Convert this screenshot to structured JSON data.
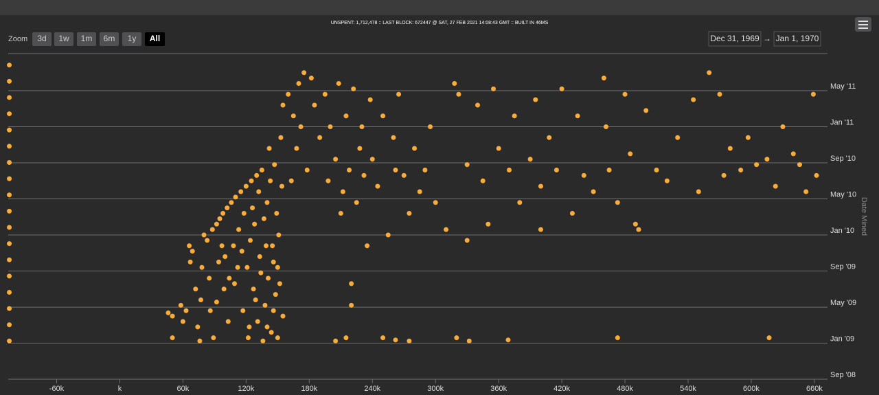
{
  "chart_data": {
    "type": "scatter",
    "title": "UNSPENT: 1,712,478 :: LAST BLOCK: 672447 @ SAT, 27 FEB 2021 14:08:43 GMT :: BUILT IN 46MS",
    "zoom_label": "Zoom",
    "zoom_buttons": [
      "3d",
      "1w",
      "1m",
      "6m",
      "1y",
      "All"
    ],
    "zoom_selected": "All",
    "range_from": "Dec 31, 1969",
    "range_arrow": "→",
    "range_to": "Jan 1, 1970",
    "y_axis_title": "Date Mined",
    "color": "#f7ac3c",
    "grid": true,
    "xlim": [
      -106000,
      672447
    ],
    "ylim": [
      2008.667,
      2011.676
    ],
    "xticks": [
      {
        "value": -60000,
        "label": "-60k"
      },
      {
        "value": 0,
        "label": "k"
      },
      {
        "value": 60000,
        "label": "60k"
      },
      {
        "value": 120000,
        "label": "120k"
      },
      {
        "value": 180000,
        "label": "180k"
      },
      {
        "value": 240000,
        "label": "240k"
      },
      {
        "value": 300000,
        "label": "300k"
      },
      {
        "value": 360000,
        "label": "360k"
      },
      {
        "value": 420000,
        "label": "420k"
      },
      {
        "value": 480000,
        "label": "480k"
      },
      {
        "value": 540000,
        "label": "540k"
      },
      {
        "value": 600000,
        "label": "600k"
      },
      {
        "value": 660000,
        "label": "660k"
      }
    ],
    "yticks": [
      {
        "value": 2008.667,
        "label": "Sep '08"
      },
      {
        "value": 2009,
        "label": "Jan '09"
      },
      {
        "value": 2009.333,
        "label": "May '09"
      },
      {
        "value": 2009.667,
        "label": "Sep '09"
      },
      {
        "value": 2010,
        "label": "Jan '10"
      },
      {
        "value": 2010.333,
        "label": "May '10"
      },
      {
        "value": 2010.667,
        "label": "Sep '10"
      },
      {
        "value": 2011,
        "label": "Jan '11"
      },
      {
        "value": 2011.333,
        "label": "May '11"
      }
    ],
    "x": [
      -105000,
      -105000,
      -105000,
      -105000,
      -105000,
      -105000,
      -105000,
      -105000,
      -105000,
      -105000,
      -105000,
      -105000,
      -105000,
      -105000,
      -105000,
      -105000,
      -105000,
      -105000,
      46000,
      50000,
      50000,
      63000,
      60000,
      67000,
      69000,
      66000,
      76000,
      77000,
      78000,
      80000,
      83000,
      88000,
      92000,
      89000,
      95000,
      98000,
      92000,
      100000,
      102000,
      106000,
      104000,
      110000,
      112000,
      115000,
      117000,
      120000,
      122000,
      123000,
      125000,
      127000,
      128000,
      130000,
      131000,
      133000,
      135000,
      136000,
      138000,
      140000,
      141000,
      142000,
      144000,
      145000,
      147000,
      148000,
      150000,
      151000,
      153000,
      155000,
      155000,
      58000,
      72000,
      74000,
      85000,
      86000,
      94000,
      97000,
      99000,
      103000,
      108000,
      109000,
      113000,
      116000,
      118000,
      121000,
      124000,
      126000,
      129000,
      132000,
      134000,
      137000,
      139000,
      143000,
      146000,
      149000,
      152000,
      154000,
      146000,
      140000,
      150000,
      160000,
      165000,
      170000,
      175000,
      168000,
      172000,
      178000,
      163000,
      182000,
      185000,
      190000,
      195000,
      198000,
      200000,
      205000,
      208000,
      210000,
      212000,
      215000,
      218000,
      220000,
      222000,
      225000,
      228000,
      230000,
      232000,
      235000,
      238000,
      240000,
      245000,
      250000,
      255000,
      260000,
      262000,
      265000,
      270000,
      275000,
      280000,
      285000,
      290000,
      295000,
      300000,
      205000,
      215000,
      250000,
      262000,
      275000,
      220000,
      318000,
      322000,
      330000,
      340000,
      345000,
      355000,
      360000,
      370000,
      375000,
      380000,
      390000,
      395000,
      400000,
      408000,
      415000,
      420000,
      430000,
      435000,
      441000,
      450000,
      460000,
      462000,
      465000,
      473000,
      480000,
      485000,
      490000,
      493000,
      500000,
      510000,
      520000,
      530000,
      545000,
      550000,
      560000,
      570000,
      574000,
      580000,
      590000,
      597000,
      605000,
      615000,
      623000,
      630000,
      640000,
      646000,
      652000,
      659000,
      662000,
      320000,
      332000,
      369000,
      473000,
      617000,
      310000,
      330000,
      350000,
      400000
    ],
    "values": [
      2009.02,
      2009.17,
      2009.32,
      2009.47,
      2009.62,
      2009.77,
      2009.92,
      2010.07,
      2010.22,
      2010.37,
      2010.52,
      2010.67,
      2010.82,
      2010.97,
      2011.12,
      2011.27,
      2011.42,
      2011.57,
      2009.28,
      2009.25,
      2009.05,
      2009.3,
      2009.2,
      2009.75,
      2009.85,
      2009.9,
      2009.02,
      2009.4,
      2009.7,
      2010,
      2009.95,
      2010.05,
      2010.1,
      2009.05,
      2010.15,
      2010.2,
      2009.38,
      2009.8,
      2010.25,
      2010.3,
      2009.6,
      2010.35,
      2009.7,
      2010.4,
      2009.3,
      2010.45,
      2009.05,
      2009.15,
      2010.5,
      2009.5,
      2010.1,
      2010.55,
      2009.2,
      2009.8,
      2010.6,
      2009.02,
      2009.35,
      2010.3,
      2009.6,
      2010.8,
      2009.1,
      2009.9,
      2010.65,
      2009.45,
      2009.05,
      2010,
      2010.9,
      2011.2,
      2009.25,
      2009.35,
      2009.5,
      2009.15,
      2009.6,
      2009.3,
      2009.75,
      2009.9,
      2009.5,
      2009.2,
      2009.9,
      2009.55,
      2010.05,
      2009.85,
      2010.2,
      2009.7,
      2009.95,
      2010.25,
      2009.4,
      2010.4,
      2009.65,
      2010.15,
      2009.9,
      2010.5,
      2009.75,
      2010.2,
      2009.55,
      2010.45,
      2009.3,
      2009.15,
      2009.7,
      2011.3,
      2011.1,
      2011.4,
      2011.5,
      2010.8,
      2011,
      2010.6,
      2010.5,
      2011.45,
      2011.2,
      2010.9,
      2011.3,
      2010.5,
      2011,
      2010.7,
      2011.4,
      2010.2,
      2010.4,
      2011.1,
      2010.6,
      2009.55,
      2011.35,
      2010.3,
      2010.8,
      2011,
      2010.55,
      2009.9,
      2011.25,
      2010.7,
      2010.45,
      2011.1,
      2010,
      2010.9,
      2010.6,
      2011.3,
      2010.55,
      2010.2,
      2010.8,
      2010.4,
      2010.6,
      2011,
      2010.3,
      2009.02,
      2009.05,
      2009.05,
      2009.03,
      2009.02,
      2009.35,
      2011.4,
      2011.3,
      2010.65,
      2011.2,
      2010.5,
      2011.35,
      2010.8,
      2010.6,
      2011.1,
      2010.3,
      2010.7,
      2011.25,
      2010.45,
      2010.9,
      2010.6,
      2011.35,
      2010.2,
      2011.1,
      2010.55,
      2010.4,
      2011.45,
      2011,
      2010.6,
      2010.3,
      2011.3,
      2010.75,
      2010.1,
      2010.05,
      2011.15,
      2010.6,
      2010.5,
      2010.9,
      2011.25,
      2010.4,
      2011.5,
      2011.3,
      2010.55,
      2010.8,
      2010.6,
      2010.9,
      2010.65,
      2010.7,
      2010.45,
      2011,
      2010.75,
      2010.65,
      2010.4,
      2011.3,
      2010.55,
      2009.05,
      2009.02,
      2009.03,
      2009.05,
      2009.05,
      2010.05,
      2009.95,
      2010.1,
      2010.05
    ]
  }
}
